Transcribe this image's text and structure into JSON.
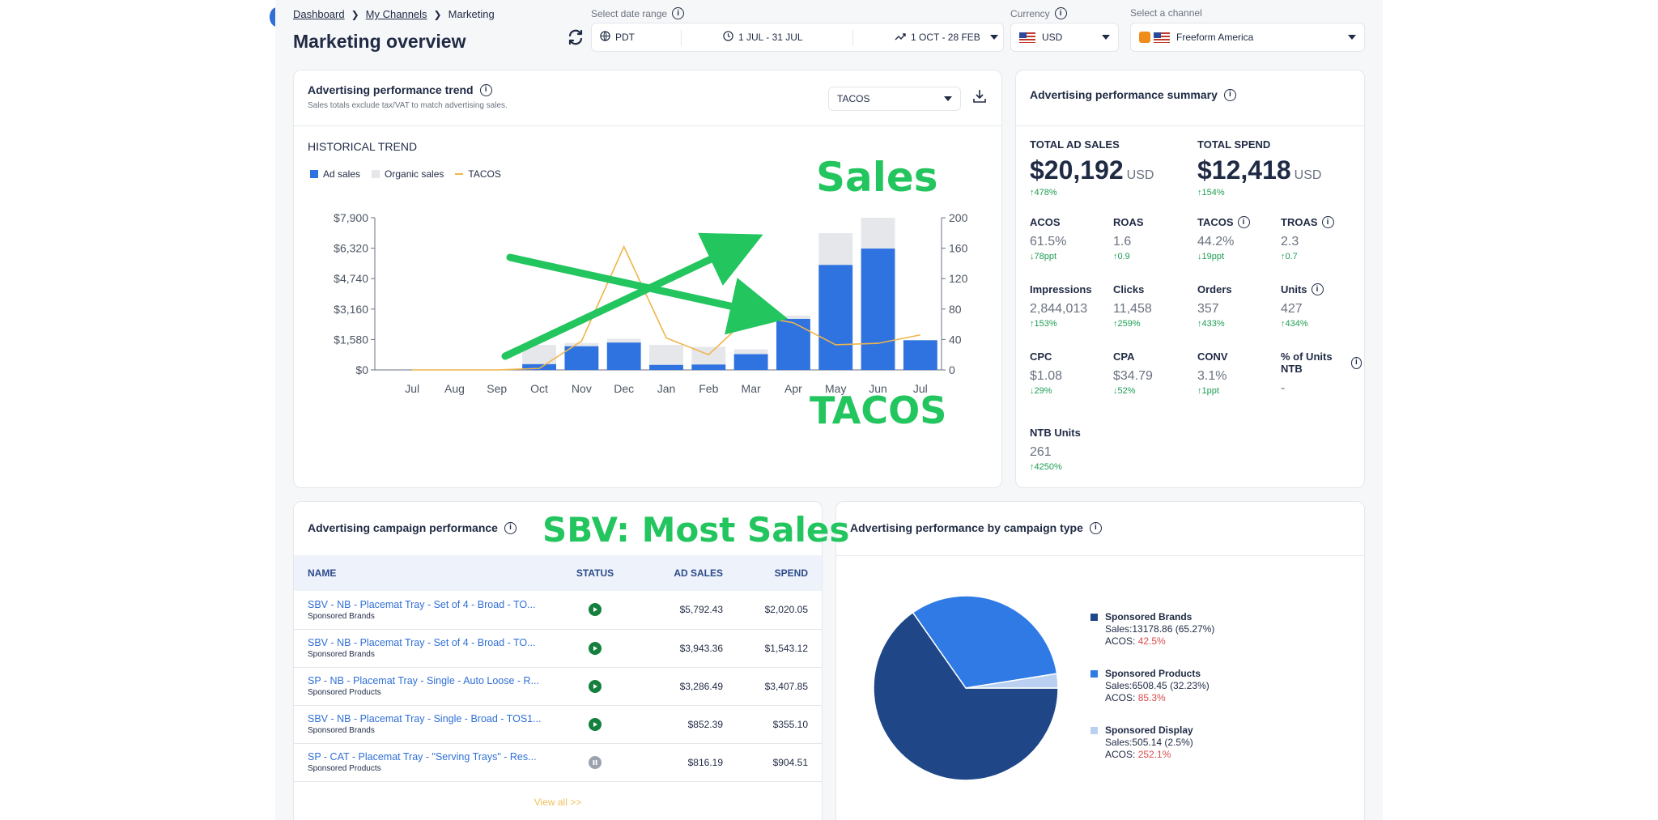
{
  "header": {
    "breadcrumb": [
      "Dashboard",
      "My Channels",
      "Marketing"
    ],
    "title": "Marketing overview",
    "date_range_label": "Select date range",
    "timezone": "PDT",
    "date_primary": "1 JUL - 31 JUL",
    "date_compare": "1 OCT - 28 FEB",
    "currency_label": "Currency",
    "currency": "USD",
    "channel_label": "Select a channel",
    "channel": "Freeform America"
  },
  "trend": {
    "title": "Advertising performance trend",
    "subtitle": "Sales totals exclude tax/VAT to match advertising sales.",
    "metric_select": "TACOS",
    "section_title": "HISTORICAL TREND",
    "legend": [
      "Ad sales",
      "Organic sales",
      "TACOS"
    ]
  },
  "chart_data": {
    "type": "bar",
    "categories": [
      "Jul",
      "Aug",
      "Sep",
      "Oct",
      "Nov",
      "Dec",
      "Jan",
      "Feb",
      "Mar",
      "Apr",
      "May",
      "Jun",
      "Jul"
    ],
    "series": [
      {
        "name": "Ad sales",
        "type": "bar",
        "values": [
          0,
          0,
          0,
          300,
          1230,
          1420,
          260,
          280,
          820,
          2650,
          5450,
          6300,
          1540
        ]
      },
      {
        "name": "Organic sales",
        "type": "bar",
        "values": [
          0,
          0,
          0,
          1300,
          1400,
          1620,
          1300,
          1200,
          1070,
          2820,
          7100,
          7900,
          1560
        ]
      },
      {
        "name": "TACOS",
        "type": "line",
        "axis": "right",
        "values": [
          0,
          0,
          0,
          2,
          38,
          162,
          42,
          20,
          72,
          62,
          33,
          35,
          46
        ]
      }
    ],
    "ylim": [
      0,
      7900
    ],
    "y_ticks": [
      "$0",
      "$1,580",
      "$3,160",
      "$4,740",
      "$6,320",
      "$7,900"
    ],
    "y2lim": [
      0,
      200
    ],
    "y2_ticks": [
      "0",
      "40",
      "80",
      "120",
      "160",
      "200"
    ],
    "colors": {
      "ad": "#2f73e0",
      "organic": "#e5e7eb",
      "tacos": "#f0b44c"
    }
  },
  "summary": {
    "title": "Advertising performance summary",
    "total_ad_sales_label": "TOTAL AD SALES",
    "total_ad_sales": "$20,192",
    "total_ad_sales_unit": "USD",
    "total_ad_sales_delta": "↑478%",
    "total_spend_label": "TOTAL SPEND",
    "total_spend": "$12,418",
    "total_spend_unit": "USD",
    "total_spend_delta": "↑154%",
    "stats": [
      {
        "label": "ACOS",
        "value": "61.5%",
        "delta": "↓78ppt"
      },
      {
        "label": "ROAS",
        "value": "1.6",
        "delta": "↑0.9"
      },
      {
        "label": "TACOS",
        "value": "44.2%",
        "delta": "↓19ppt"
      },
      {
        "label": "TROAS",
        "value": "2.3",
        "delta": "↑0.7"
      },
      {
        "label": "Impressions",
        "value": "2,844,013",
        "delta": "↑153%"
      },
      {
        "label": "Clicks",
        "value": "11,458",
        "delta": "↑259%"
      },
      {
        "label": "Orders",
        "value": "357",
        "delta": "↑433%"
      },
      {
        "label": "Units",
        "value": "427",
        "delta": "↑434%"
      },
      {
        "label": "CPC",
        "value": "$1.08",
        "delta": "↓29%"
      },
      {
        "label": "CPA",
        "value": "$34.79",
        "delta": "↓52%"
      },
      {
        "label": "CONV",
        "value": "3.1%",
        "delta": "↑1ppt"
      },
      {
        "label": "% of Units NTB",
        "value": "-",
        "delta": ""
      }
    ],
    "ntb_label": "NTB Units",
    "ntb_value": "261",
    "ntb_delta": "↑4250%"
  },
  "campaigns": {
    "title": "Advertising campaign performance",
    "columns": [
      "NAME",
      "STATUS",
      "AD SALES",
      "SPEND"
    ],
    "rows": [
      {
        "name": "SBV - NB - Placemat Tray - Set of 4 - Broad - TO...",
        "type": "Sponsored Brands",
        "status": "play",
        "ad_sales": "$5,792.43",
        "spend": "$2,020.05"
      },
      {
        "name": "SBV - NB - Placemat Tray - Set of 4 - Broad - TO...",
        "type": "Sponsored Brands",
        "status": "play",
        "ad_sales": "$3,943.36",
        "spend": "$1,543.12"
      },
      {
        "name": "SP - NB - Placemat Tray - Single - Auto Loose - R...",
        "type": "Sponsored Products",
        "status": "play",
        "ad_sales": "$3,286.49",
        "spend": "$3,407.85"
      },
      {
        "name": "SBV - NB - Placemat Tray - Single - Broad - TOS1...",
        "type": "Sponsored Brands",
        "status": "play",
        "ad_sales": "$852.39",
        "spend": "$355.10"
      },
      {
        "name": "SP - CAT - Placemat Tray - \"Serving Trays\" - Res...",
        "type": "Sponsored Products",
        "status": "pause",
        "ad_sales": "$816.19",
        "spend": "$904.51"
      }
    ],
    "view_all": "View all >>"
  },
  "campaign_type": {
    "title": "Advertising performance by campaign type",
    "slices": [
      {
        "name": "Sponsored Brands",
        "sales": "Sales:13178.86 (65.27%)",
        "acos_label": "ACOS:",
        "acos": "42.5%",
        "value": 65.27,
        "color": "#1f4788"
      },
      {
        "name": "Sponsored Products",
        "sales": "Sales:6508.45 (32.23%)",
        "acos_label": "ACOS:",
        "acos": "85.3%",
        "value": 32.23,
        "color": "#2f7ae5"
      },
      {
        "name": "Sponsored Display",
        "sales": "Sales:505.14 (2.5%)",
        "acos_label": "ACOS:",
        "acos": "252.1%",
        "value": 2.5,
        "color": "#b9d0f2"
      }
    ]
  },
  "annotations": {
    "sales": "Sales",
    "tacos": "TACOS",
    "sbv": "SBV: Most Sales",
    "color": "#22c55e"
  }
}
